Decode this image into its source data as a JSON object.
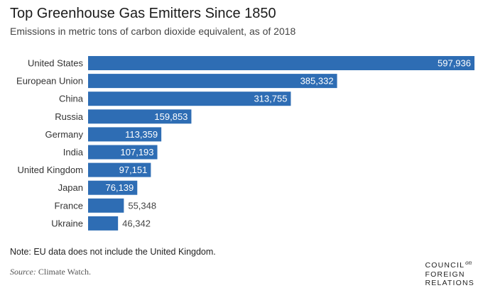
{
  "chart_data": {
    "type": "bar",
    "orientation": "horizontal",
    "title": "Top Greenhouse Gas Emitters Since 1850",
    "subtitle": "Emissions in metric tons of carbon dioxide equivalent, as of 2018",
    "categories": [
      "United States",
      "European Union",
      "China",
      "Russia",
      "Germany",
      "India",
      "United Kingdom",
      "Japan",
      "France",
      "Ukraine"
    ],
    "values": [
      597936,
      385332,
      313755,
      159853,
      113359,
      107193,
      97151,
      76139,
      55348,
      46342
    ],
    "value_labels": [
      "597,936",
      "385,332",
      "313,755",
      "159,853",
      "113,359",
      "107,193",
      "97,151",
      "76,139",
      "55,348",
      "46,342"
    ],
    "xlabel": "",
    "ylabel": "",
    "xlim": [
      0,
      597936
    ],
    "grid": false,
    "legend": "none",
    "bar_color": "#2e6db4"
  },
  "note": "Note: EU data does not include the United Kingdom.",
  "source": {
    "label": "Source:",
    "text": "Climate Watch."
  },
  "logo": {
    "line1": "COUNCIL",
    "on": "on",
    "line2": "FOREIGN",
    "line3": "RELATIONS"
  }
}
